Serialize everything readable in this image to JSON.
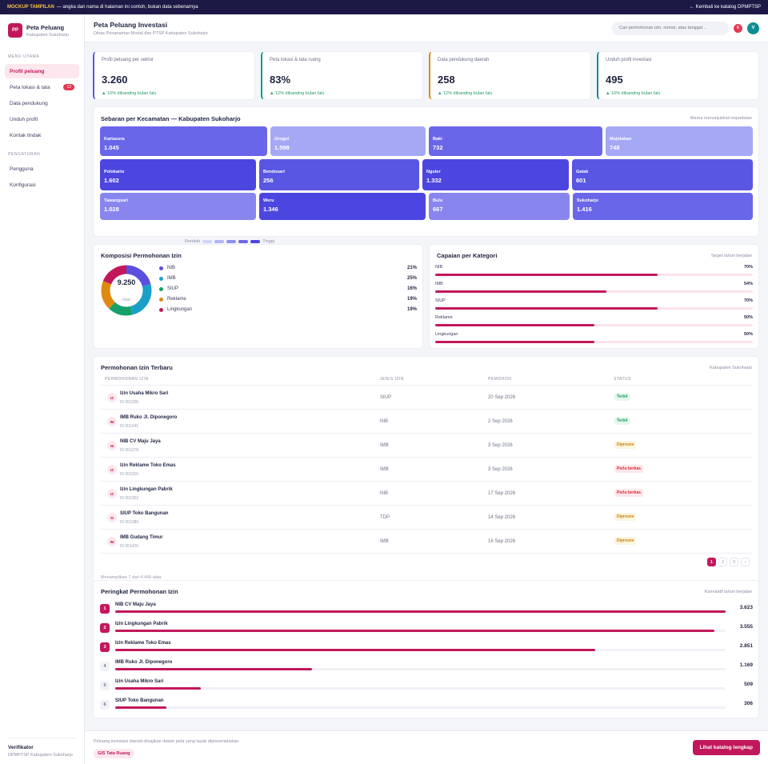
{
  "topbar": {
    "tag": "MOCKUP TAMPILAN",
    "notice": "— angka dan nama di halaman ini contoh, bukan data sebenarnya",
    "back_link": "← Kembali ke katalog DPMPTSP"
  },
  "brand": {
    "logo": "PP",
    "title": "Peta Peluang",
    "subtitle": "Kabupaten Sukoharjo"
  },
  "sidebar": {
    "section_main": "MENU UTAMA",
    "items": [
      {
        "label": "Profil peluang",
        "active": true
      },
      {
        "label": "Peta lokasi & tata",
        "badge": "12"
      },
      {
        "label": "Data pendukung"
      },
      {
        "label": "Unduh profil"
      },
      {
        "label": "Kontak tindak"
      }
    ],
    "section_settings": "PENGATURAN",
    "settings_items": [
      {
        "label": "Pengguna"
      },
      {
        "label": "Konfigurasi"
      }
    ],
    "footer": {
      "name": "Verifikator",
      "role": "DPMPTSP Kabupaten Sukoharjo"
    }
  },
  "header": {
    "title": "Peta Peluang Investasi",
    "subtitle": "Dinas Penanaman Modal dan PTSP Kabupaten Sukoharjo",
    "search_placeholder": "Cari permohonan izin, nomor, atau tanggal...",
    "notif_count": "6",
    "user_initial": "V"
  },
  "kpis": [
    {
      "label": "Profil peluang per sektor",
      "value": "3.260",
      "change": "▲ 10% dibanding bulan lalu",
      "accent": "#5b5bd6"
    },
    {
      "label": "Peta lokasi & tata ruang",
      "value": "83%",
      "change": "▲ 12% dibanding bulan lalu",
      "accent": "#0f9d8a"
    },
    {
      "label": "Data pendukung daerah",
      "value": "258",
      "change": "▲ 12% dibanding bulan lalu",
      "accent": "#d98a12"
    },
    {
      "label": "Unduh profil investasi",
      "value": "495",
      "change": "▲ 10% dibanding bulan lalu",
      "accent": "#0f8c94"
    }
  ],
  "treemap": {
    "title": "Sebaran per Kecamatan — Kabupaten Sukoharjo",
    "note": "Warna menunjukkan kepadatan",
    "rows": [
      [
        {
          "name": "Kartasura",
          "value": "1.045",
          "color": "#6a66ea"
        },
        {
          "name": "Grogol",
          "value": "1.598",
          "color": "#a5a8f5"
        },
        {
          "name": "Baki",
          "value": "732",
          "color": "#6a66ea"
        },
        {
          "name": "Mojolaban",
          "value": "748",
          "color": "#a5a8f5"
        }
      ],
      [
        {
          "name": "Polokarto",
          "value": "1.602",
          "color": "#4d45e0"
        },
        {
          "name": "Bendosari",
          "value": "256",
          "color": "#5a56e4"
        },
        {
          "name": "Nguter",
          "value": "1.332",
          "color": "#4d45e0"
        },
        {
          "name": "Gatak",
          "value": "601",
          "color": "#5a56e4"
        }
      ],
      [
        {
          "name": "Tawangsari",
          "value": "1.028",
          "color": "#8886ee"
        },
        {
          "name": "Weru",
          "value": "1.346",
          "color": "#4d45e0"
        },
        {
          "name": "Bulu",
          "value": "667",
          "color": "#8886ee"
        },
        {
          "name": "Sukoharjo",
          "value": "1.416",
          "color": "#6a66ea"
        }
      ]
    ],
    "legend_low": "Rendah",
    "legend_high": "Tinggi",
    "legend_colors": [
      "#d3d5fa",
      "#b2b5f5",
      "#8f8ff0",
      "#6a66ea",
      "#4d45e0"
    ]
  },
  "donut": {
    "title": "Komposisi Permohonan Izin",
    "total": "9.250",
    "total_label": "total",
    "items": [
      {
        "label": "NIB",
        "pct": "21%",
        "value": 21,
        "color": "#5b4fe0"
      },
      {
        "label": "IMB",
        "pct": "25%",
        "value": 25,
        "color": "#1aa0c8"
      },
      {
        "label": "SIUP",
        "pct": "16%",
        "value": 16,
        "color": "#16a06b"
      },
      {
        "label": "Reklame",
        "pct": "19%",
        "value": 19,
        "color": "#de8a12"
      },
      {
        "label": "Lingkungan",
        "pct": "19%",
        "value": 19,
        "color": "#c2185b"
      }
    ]
  },
  "achievement": {
    "title": "Capaian per Kategori",
    "note": "Target tahun berjalan",
    "items": [
      {
        "label": "NIB",
        "pct": "70%",
        "value": 70
      },
      {
        "label": "IMB",
        "pct": "54%",
        "value": 54
      },
      {
        "label": "SIUP",
        "pct": "70%",
        "value": 70
      },
      {
        "label": "Reklame",
        "pct": "50%",
        "value": 50
      },
      {
        "label": "Lingkungan",
        "pct": "50%",
        "value": 50
      }
    ]
  },
  "table": {
    "title": "Permohonan Izin Terbaru",
    "note": "Kabupaten Sukoharjo",
    "columns": [
      "PERMOHONAN IZIN",
      "JENIS IZIN",
      "PEMOHON",
      "STATUS"
    ],
    "rows": [
      {
        "icon": "IZ",
        "name": "Izin Usaha Mikro Sari",
        "id": "ID 001206",
        "type": "SIUP",
        "date": "20 Sep 2026",
        "status": "Terbit",
        "kind": "ok"
      },
      {
        "icon": "IM",
        "name": "IMB Ruko Jl. Diponegoro",
        "id": "ID 001241",
        "type": "NIB",
        "date": "2 Sep 2026",
        "status": "Terbit",
        "kind": "ok"
      },
      {
        "icon": "NI",
        "name": "NIB CV Maju Jaya",
        "id": "ID 001278",
        "type": "IMB",
        "date": "3 Sep 2026",
        "status": "Diproses",
        "kind": "pr"
      },
      {
        "icon": "IZ",
        "name": "Izin Reklame Toko Emas",
        "id": "ID 001315",
        "type": "IMB",
        "date": "3 Sep 2026",
        "status": "Perlu berkas",
        "kind": "pb"
      },
      {
        "icon": "IZ",
        "name": "Izin Lingkungan Pabrik",
        "id": "ID 001352",
        "type": "NIB",
        "date": "17 Sep 2026",
        "status": "Perlu berkas",
        "kind": "pb"
      },
      {
        "icon": "SI",
        "name": "SIUP Toko Bangunan",
        "id": "ID 001389",
        "type": "TDP",
        "date": "14 Sep 2026",
        "status": "Diproses",
        "kind": "pr"
      },
      {
        "icon": "IM",
        "name": "IMB Gudang Timur",
        "id": "ID 001426",
        "type": "IMB",
        "date": "16 Sep 2026",
        "status": "Diproses",
        "kind": "pr"
      }
    ],
    "footer_text": "Menampilkan 7 dari 4.445 data",
    "pages": [
      "1",
      "2",
      "3",
      "›"
    ]
  },
  "ranking": {
    "title": "Peringkat Permohonan Izin",
    "note": "Kumulatif tahun berjalan",
    "max": 3623,
    "items": [
      {
        "rank": "1",
        "name": "NIB CV Maju Jaya",
        "value_text": "3.623",
        "value": 3623
      },
      {
        "rank": "2",
        "name": "Izin Lingkungan Pabrik",
        "value_text": "3.555",
        "value": 3555
      },
      {
        "rank": "3",
        "name": "Izin Reklame Toko Emas",
        "value_text": "2.851",
        "value": 2851
      },
      {
        "rank": "4",
        "name": "IMB Ruko Jl. Diponegoro",
        "value_text": "1.169",
        "value": 1169
      },
      {
        "rank": "5",
        "name": "Izin Usaha Mikro Sari",
        "value_text": "509",
        "value": 509
      },
      {
        "rank": "6",
        "name": "SIUP Toko Bangunan",
        "value_text": "306",
        "value": 306
      }
    ]
  },
  "footer": {
    "text": "Peluang investasi daerah disajikan dalam peta yang layak dipresentasikan.",
    "chip": "GIS Tata Ruang",
    "button": "Lihat katalog lengkap"
  }
}
